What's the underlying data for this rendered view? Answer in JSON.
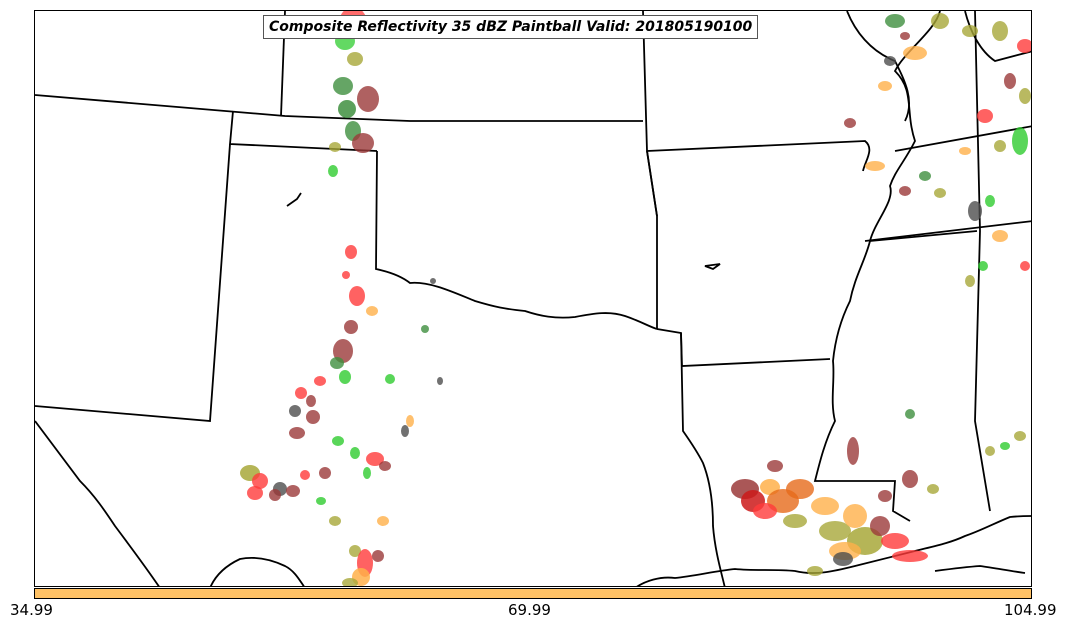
{
  "title": "Composite Reflectivity 35 dBZ Paintball Valid: 201805190100",
  "colors": {
    "red": "#ff3b3b",
    "dark_red": "#9b3a3a",
    "green": "#2fcc2f",
    "dark_green": "#3f8f3f",
    "olive": "#a8a83a",
    "orange": "#ffb04a",
    "dark_gray": "#4d4d4d",
    "colorbar": "#ffc266",
    "boundaries": "#000000"
  },
  "colorbar": {
    "ticks": [
      "34.99",
      "69.99",
      "104.99"
    ]
  }
}
